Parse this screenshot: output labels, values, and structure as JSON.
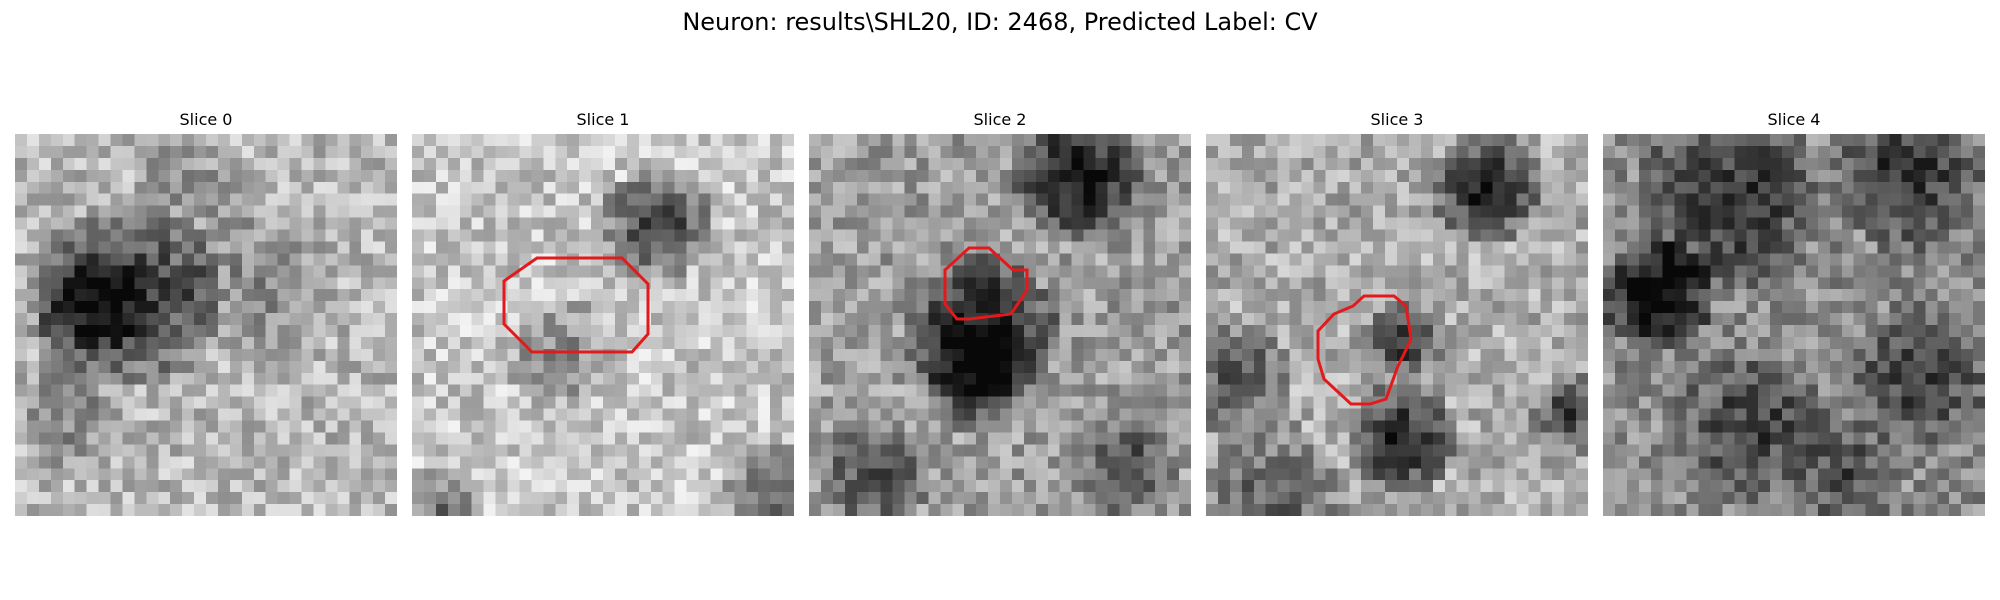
{
  "title": "Neuron: results\\SHL20, ID: 2468, Predicted Label: CV",
  "slices": [
    {
      "label": "Slice 0",
      "has_contour": false
    },
    {
      "label": "Slice 1",
      "has_contour": true
    },
    {
      "label": "Slice 2",
      "has_contour": true
    },
    {
      "label": "Slice 3",
      "has_contour": true
    },
    {
      "label": "Slice 4",
      "has_contour": false
    }
  ],
  "colors": {
    "contour": "#e31a1c",
    "background": "#ffffff"
  },
  "colormap": "grayscale"
}
